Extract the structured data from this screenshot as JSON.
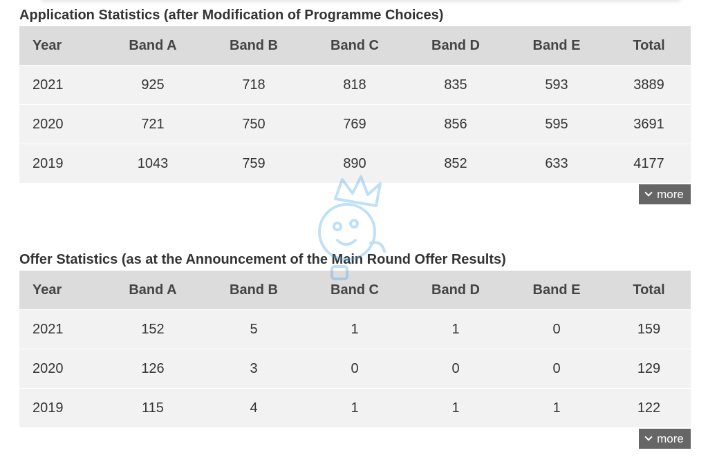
{
  "application": {
    "title": "Application Statistics (after Modification of Programme Choices)",
    "headers": [
      "Year",
      "Band A",
      "Band B",
      "Band C",
      "Band D",
      "Band E",
      "Total"
    ],
    "rows": [
      [
        "2021",
        "925",
        "718",
        "818",
        "835",
        "593",
        "3889"
      ],
      [
        "2020",
        "721",
        "750",
        "769",
        "856",
        "595",
        "3691"
      ],
      [
        "2019",
        "1043",
        "759",
        "890",
        "852",
        "633",
        "4177"
      ]
    ],
    "more_label": "more"
  },
  "offer": {
    "title": "Offer Statistics (as at the Announcement of the Main Round Offer Results)",
    "headers": [
      "Year",
      "Band A",
      "Band B",
      "Band C",
      "Band D",
      "Band E",
      "Total"
    ],
    "rows": [
      [
        "2021",
        "152",
        "5",
        "1",
        "1",
        "0",
        "159"
      ],
      [
        "2020",
        "126",
        "3",
        "0",
        "0",
        "0",
        "129"
      ],
      [
        "2019",
        "115",
        "4",
        "1",
        "1",
        "1",
        "122"
      ]
    ],
    "more_label": "more"
  },
  "colors": {
    "header_bg": "#dcdcdc",
    "row_bg": "#f2f2f2",
    "button_bg": "#666666",
    "watermark": "#4aa8e8"
  },
  "icons": {
    "more_chevron": "chevron-down-icon",
    "watermark": "watermark-mascot-icon"
  }
}
